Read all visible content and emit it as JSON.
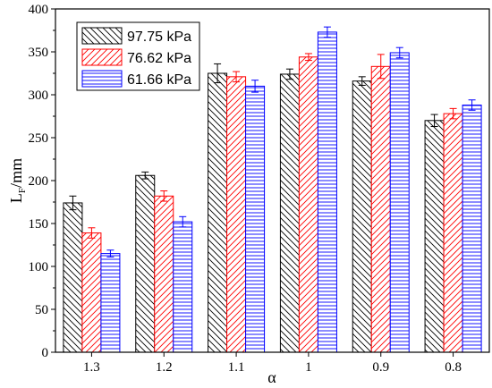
{
  "chart_data": {
    "type": "bar",
    "categories": [
      "1.3",
      "1.2",
      "1.1",
      "1",
      "0.9",
      "0.8"
    ],
    "xlabel": "α",
    "ylabel": "L",
    "ylabel_subscript": "F",
    "ylabel_unit": "/mm",
    "ylim": [
      0,
      400
    ],
    "yticks": [
      "0",
      "50",
      "100",
      "150",
      "200",
      "250",
      "300",
      "350",
      "400"
    ],
    "grid": false,
    "legend_position": "top-left",
    "error_bars": true,
    "series": [
      {
        "name": "97.75 kPa",
        "color": "#000000",
        "hatch": "diagonal-backslash",
        "values": [
          174,
          206,
          325,
          324,
          316,
          270
        ],
        "errors": [
          8,
          4,
          11,
          6,
          5,
          7
        ]
      },
      {
        "name": "76.62 kPa",
        "color": "#ff0000",
        "hatch": "diagonal-slash",
        "values": [
          139,
          182,
          321,
          344,
          333,
          278
        ],
        "errors": [
          6,
          6,
          6,
          4,
          14,
          6
        ]
      },
      {
        "name": "61.66 kPa",
        "color": "#0000ff",
        "hatch": "horizontal",
        "values": [
          115,
          152,
          310,
          373,
          349,
          288
        ],
        "errors": [
          4,
          6,
          7,
          6,
          6,
          6
        ]
      }
    ]
  }
}
